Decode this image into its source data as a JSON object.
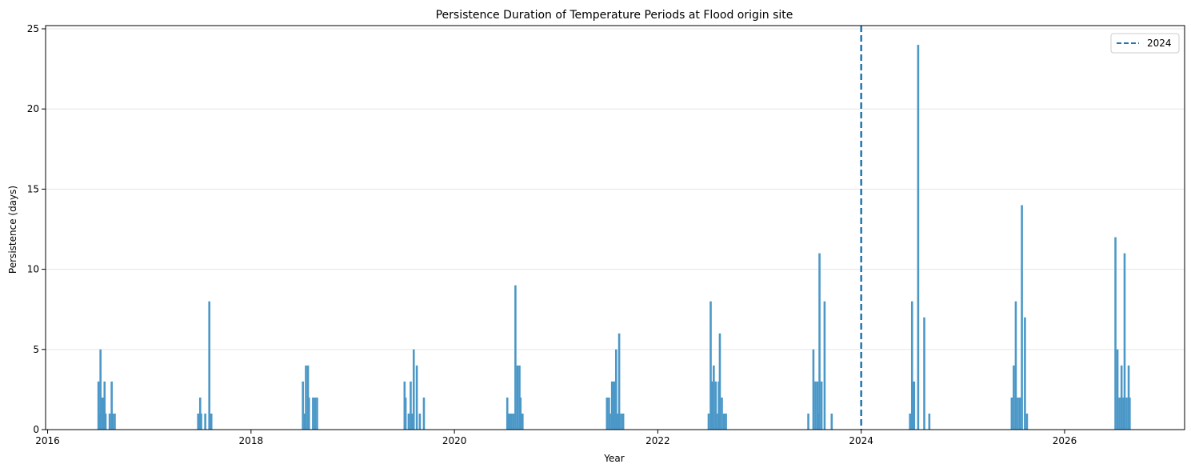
{
  "chart_data": {
    "type": "bar",
    "title": "Persistence Duration of Temperature Periods at Flood origin site",
    "xlabel": "Year",
    "ylabel": "Persistence (days)",
    "xlim": [
      2015.98,
      2027.18
    ],
    "ylim": [
      0,
      25.2
    ],
    "x_ticks": [
      2016,
      2018,
      2020,
      2022,
      2024,
      2026
    ],
    "y_ticks": [
      0,
      5,
      10,
      15,
      20,
      25
    ],
    "grid": "y",
    "bar_color": "#4b98c8",
    "reference_line": {
      "x": 2024.0,
      "label": "2024",
      "color": "#1f77b4",
      "style": "dashed"
    },
    "legend": {
      "position": "top-right",
      "entries": [
        "2024"
      ]
    },
    "bars": [
      {
        "x": 2016.5,
        "y": 3
      },
      {
        "x": 2016.51,
        "y": 1
      },
      {
        "x": 2016.52,
        "y": 5
      },
      {
        "x": 2016.54,
        "y": 2
      },
      {
        "x": 2016.56,
        "y": 3
      },
      {
        "x": 2016.57,
        "y": 1
      },
      {
        "x": 2016.61,
        "y": 1
      },
      {
        "x": 2016.63,
        "y": 3
      },
      {
        "x": 2016.64,
        "y": 1
      },
      {
        "x": 2016.66,
        "y": 1
      },
      {
        "x": 2017.48,
        "y": 1
      },
      {
        "x": 2017.5,
        "y": 2
      },
      {
        "x": 2017.51,
        "y": 1
      },
      {
        "x": 2017.55,
        "y": 1
      },
      {
        "x": 2017.59,
        "y": 8
      },
      {
        "x": 2017.61,
        "y": 1
      },
      {
        "x": 2018.51,
        "y": 3
      },
      {
        "x": 2018.53,
        "y": 1
      },
      {
        "x": 2018.54,
        "y": 4
      },
      {
        "x": 2018.56,
        "y": 4
      },
      {
        "x": 2018.57,
        "y": 2
      },
      {
        "x": 2018.61,
        "y": 2
      },
      {
        "x": 2018.63,
        "y": 2
      },
      {
        "x": 2018.65,
        "y": 2
      },
      {
        "x": 2019.51,
        "y": 3
      },
      {
        "x": 2019.52,
        "y": 2
      },
      {
        "x": 2019.55,
        "y": 1
      },
      {
        "x": 2019.57,
        "y": 3
      },
      {
        "x": 2019.58,
        "y": 1
      },
      {
        "x": 2019.6,
        "y": 5
      },
      {
        "x": 2019.63,
        "y": 4
      },
      {
        "x": 2019.66,
        "y": 1
      },
      {
        "x": 2019.7,
        "y": 2
      },
      {
        "x": 2020.52,
        "y": 2
      },
      {
        "x": 2020.54,
        "y": 1
      },
      {
        "x": 2020.56,
        "y": 1
      },
      {
        "x": 2020.58,
        "y": 1
      },
      {
        "x": 2020.6,
        "y": 9
      },
      {
        "x": 2020.62,
        "y": 4
      },
      {
        "x": 2020.64,
        "y": 4
      },
      {
        "x": 2020.65,
        "y": 2
      },
      {
        "x": 2020.67,
        "y": 1
      },
      {
        "x": 2021.5,
        "y": 2
      },
      {
        "x": 2021.52,
        "y": 2
      },
      {
        "x": 2021.53,
        "y": 1
      },
      {
        "x": 2021.55,
        "y": 3
      },
      {
        "x": 2021.56,
        "y": 1
      },
      {
        "x": 2021.57,
        "y": 3
      },
      {
        "x": 2021.59,
        "y": 5
      },
      {
        "x": 2021.61,
        "y": 1
      },
      {
        "x": 2021.62,
        "y": 6
      },
      {
        "x": 2021.64,
        "y": 1
      },
      {
        "x": 2021.66,
        "y": 1
      },
      {
        "x": 2022.5,
        "y": 1
      },
      {
        "x": 2022.52,
        "y": 8
      },
      {
        "x": 2022.53,
        "y": 3
      },
      {
        "x": 2022.55,
        "y": 4
      },
      {
        "x": 2022.57,
        "y": 3
      },
      {
        "x": 2022.59,
        "y": 1
      },
      {
        "x": 2022.6,
        "y": 3
      },
      {
        "x": 2022.61,
        "y": 6
      },
      {
        "x": 2022.63,
        "y": 2
      },
      {
        "x": 2022.65,
        "y": 1
      },
      {
        "x": 2022.67,
        "y": 1
      },
      {
        "x": 2023.48,
        "y": 1
      },
      {
        "x": 2023.53,
        "y": 5
      },
      {
        "x": 2023.55,
        "y": 3
      },
      {
        "x": 2023.57,
        "y": 3
      },
      {
        "x": 2023.58,
        "y": 1
      },
      {
        "x": 2023.59,
        "y": 11
      },
      {
        "x": 2023.61,
        "y": 3
      },
      {
        "x": 2023.64,
        "y": 8
      },
      {
        "x": 2023.71,
        "y": 1
      },
      {
        "x": 2024.48,
        "y": 1
      },
      {
        "x": 2024.5,
        "y": 8
      },
      {
        "x": 2024.52,
        "y": 3
      },
      {
        "x": 2024.56,
        "y": 24
      },
      {
        "x": 2024.62,
        "y": 7
      },
      {
        "x": 2024.67,
        "y": 1
      },
      {
        "x": 2025.48,
        "y": 2
      },
      {
        "x": 2025.5,
        "y": 4
      },
      {
        "x": 2025.52,
        "y": 8
      },
      {
        "x": 2025.54,
        "y": 2
      },
      {
        "x": 2025.56,
        "y": 2
      },
      {
        "x": 2025.58,
        "y": 14
      },
      {
        "x": 2025.61,
        "y": 7
      },
      {
        "x": 2025.63,
        "y": 1
      },
      {
        "x": 2026.5,
        "y": 12
      },
      {
        "x": 2026.52,
        "y": 5
      },
      {
        "x": 2026.54,
        "y": 2
      },
      {
        "x": 2026.56,
        "y": 4
      },
      {
        "x": 2026.58,
        "y": 2
      },
      {
        "x": 2026.59,
        "y": 11
      },
      {
        "x": 2026.61,
        "y": 2
      },
      {
        "x": 2026.63,
        "y": 4
      },
      {
        "x": 2026.64,
        "y": 2
      }
    ]
  }
}
